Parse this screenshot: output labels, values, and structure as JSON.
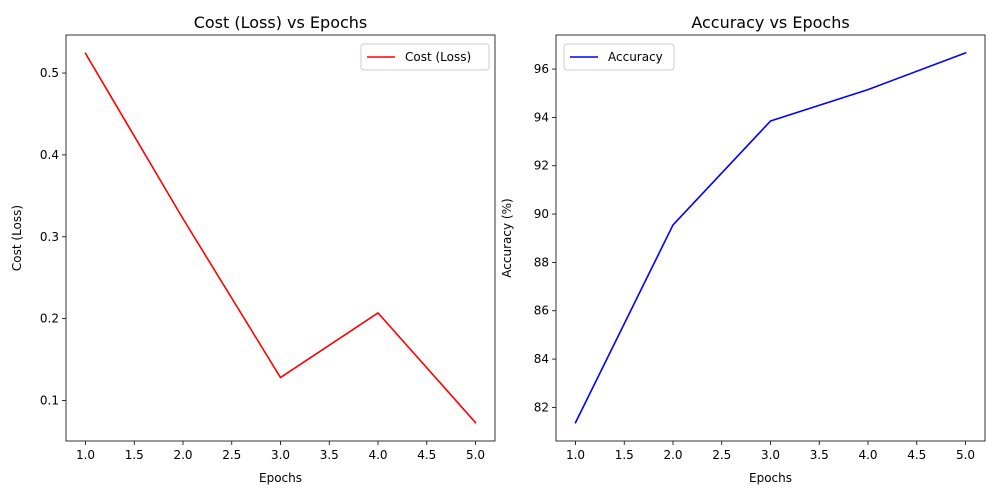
{
  "chart_data": [
    {
      "type": "line",
      "title": "Cost (Loss) vs Epochs",
      "xlabel": "Epochs",
      "ylabel": "Cost (Loss)",
      "xlim": [
        0.8,
        5.2
      ],
      "ylim": [
        0.0505,
        0.5465
      ],
      "xticks": [
        1.0,
        1.5,
        2.0,
        2.5,
        3.0,
        3.5,
        4.0,
        4.5,
        5.0
      ],
      "xtick_labels": [
        "1.0",
        "1.5",
        "2.0",
        "2.5",
        "3.0",
        "3.5",
        "4.0",
        "4.5",
        "5.0"
      ],
      "yticks": [
        0.1,
        0.2,
        0.3,
        0.4,
        0.5
      ],
      "ytick_labels": [
        "0.1",
        "0.2",
        "0.3",
        "0.4",
        "0.5"
      ],
      "grid": false,
      "legend_position": "top-right",
      "series": [
        {
          "name": "Cost (Loss)",
          "color": "#ff0000",
          "x": [
            1,
            2,
            3,
            4,
            5
          ],
          "y": [
            0.524,
            0.322,
            0.128,
            0.207,
            0.073
          ]
        }
      ]
    },
    {
      "type": "line",
      "title": "Accuracy vs Epochs",
      "xlabel": "Epochs",
      "ylabel": "Accuracy (%)",
      "xlim": [
        0.8,
        5.2
      ],
      "ylim": [
        80.61,
        97.41
      ],
      "xticks": [
        1.0,
        1.5,
        2.0,
        2.5,
        3.0,
        3.5,
        4.0,
        4.5,
        5.0
      ],
      "xtick_labels": [
        "1.0",
        "1.5",
        "2.0",
        "2.5",
        "3.0",
        "3.5",
        "4.0",
        "4.5",
        "5.0"
      ],
      "yticks": [
        82,
        84,
        86,
        88,
        90,
        92,
        94,
        96
      ],
      "ytick_labels": [
        "82",
        "84",
        "86",
        "88",
        "90",
        "92",
        "94",
        "96"
      ],
      "grid": false,
      "legend_position": "top-left",
      "series": [
        {
          "name": "Accuracy",
          "color": "#0000ff",
          "x": [
            1,
            2,
            3,
            4,
            5
          ],
          "y": [
            81.37,
            89.55,
            93.85,
            95.15,
            96.67
          ]
        }
      ]
    }
  ]
}
